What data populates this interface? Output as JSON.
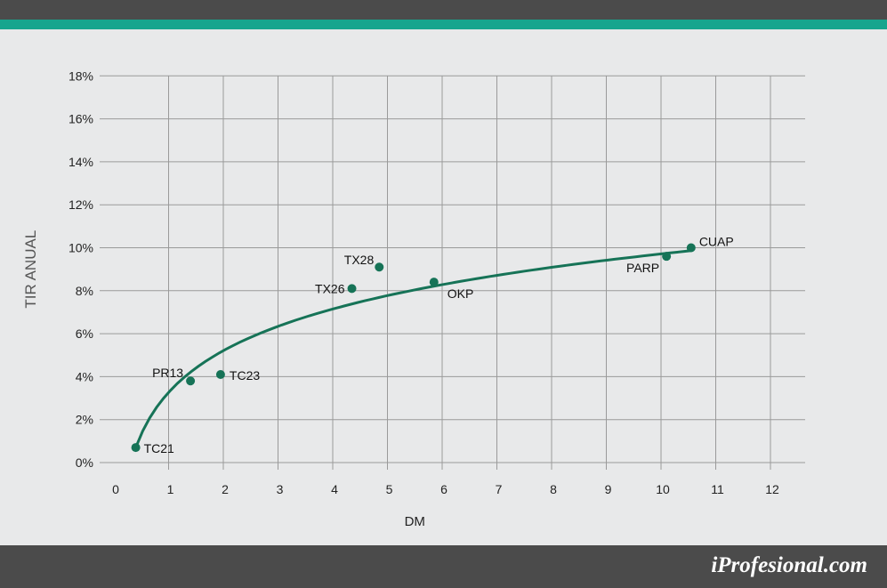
{
  "chart_data": {
    "type": "scatter",
    "xlabel": "DM",
    "ylabel": "TIR ANUAL",
    "xlim": [
      0,
      12
    ],
    "ylim": [
      0,
      18
    ],
    "x_ticks": [
      "0",
      "1",
      "2",
      "3",
      "4",
      "5",
      "6",
      "7",
      "8",
      "9",
      "10",
      "11",
      "12"
    ],
    "y_ticks": [
      "0%",
      "2%",
      "4%",
      "6%",
      "8%",
      "10%",
      "12%",
      "14%",
      "16%",
      "18%"
    ],
    "grid": true,
    "points": [
      {
        "label": "TC21",
        "x": 0.4,
        "y": 0.7
      },
      {
        "label": "PR13",
        "x": 1.4,
        "y": 3.8
      },
      {
        "label": "TC23",
        "x": 1.95,
        "y": 4.1
      },
      {
        "label": "TX26",
        "x": 4.35,
        "y": 8.1
      },
      {
        "label": "TX28",
        "x": 4.85,
        "y": 9.1
      },
      {
        "label": "OKP",
        "x": 5.85,
        "y": 8.4
      },
      {
        "label": "PARP",
        "x": 10.1,
        "y": 9.6
      },
      {
        "label": "CUAP",
        "x": 10.55,
        "y": 10.0
      }
    ],
    "trendline": {
      "type": "fitted-curve",
      "x_range": [
        0.4,
        10.55
      ]
    },
    "colors": {
      "points": "#167357",
      "curve": "#167357",
      "grid": "#9a9a9a"
    }
  },
  "brand": {
    "text": "iProfesional.com"
  }
}
